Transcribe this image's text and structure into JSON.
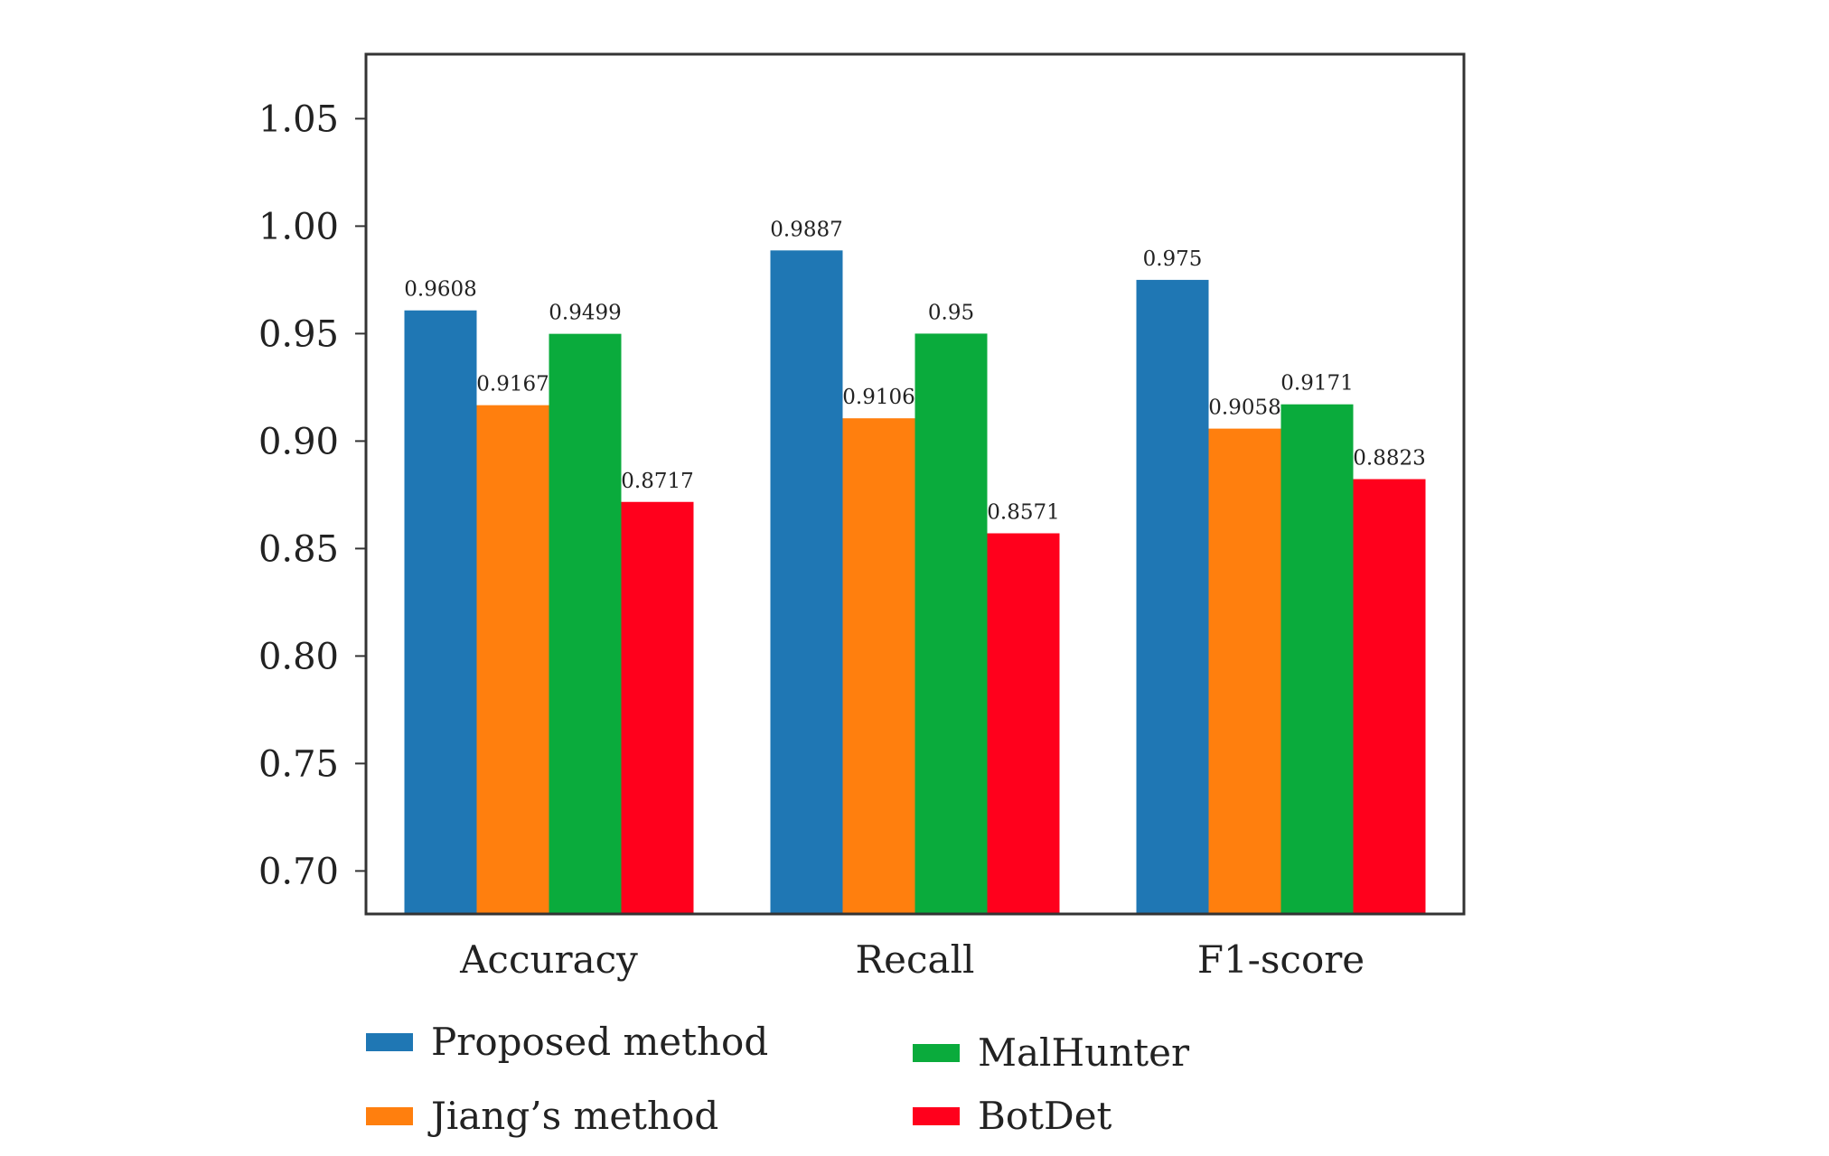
{
  "chart_data": {
    "type": "bar",
    "title": "",
    "xlabel": "",
    "ylabel": "",
    "categories": [
      "Accuracy",
      "Recall",
      "F1-score"
    ],
    "ylim": [
      0.68,
      1.08
    ],
    "yticks": [
      "0.70",
      "0.75",
      "0.80",
      "0.85",
      "0.90",
      "0.95",
      "1.00",
      "1.05"
    ],
    "grid": false,
    "legend_position": "bottom",
    "series": [
      {
        "name": "Proposed method",
        "color": "#1f77b4",
        "values": [
          0.9608,
          0.9887,
          0.975
        ],
        "labels": [
          "0.9608",
          "0.9887",
          "0.975"
        ]
      },
      {
        "name": "Jiang’s method",
        "color": "#ff7f0e",
        "values": [
          0.9167,
          0.9106,
          0.9058
        ],
        "labels": [
          "0.9167",
          "0.9106",
          "0.9058"
        ]
      },
      {
        "name": "MalHunter",
        "color": "#0aab3c",
        "values": [
          0.9499,
          0.95,
          0.9171
        ],
        "labels": [
          "0.9499",
          "0.95",
          "0.9171"
        ]
      },
      {
        "name": "BotDet",
        "color": "#ff001c",
        "values": [
          0.8717,
          0.8571,
          0.8823
        ],
        "labels": [
          "0.8717",
          "0.8571",
          "0.8823"
        ]
      }
    ]
  }
}
